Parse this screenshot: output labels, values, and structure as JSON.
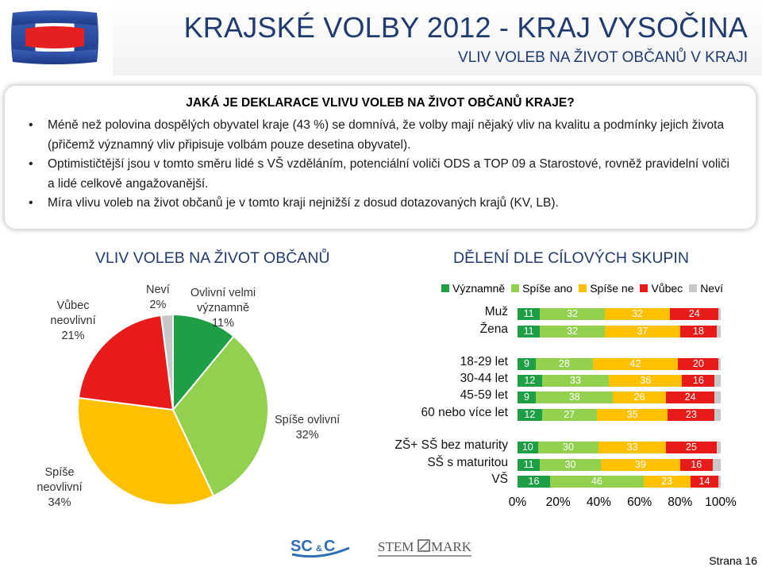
{
  "header": {
    "title": "KRAJSKÉ VOLBY 2012 - KRAJ VYSOČINA",
    "subtitle": "VLIV VOLEB NA ŽIVOT OBČANŮ V KRAJI",
    "logo_icon": "ct-logo-icon"
  },
  "info": {
    "heading": "JAKÁ JE DEKLARACE VLIVU VOLEB NA ŽIVOT OBČANŮ KRAJE?",
    "bullets": [
      "Méně než polovina dospělých obyvatel kraje (43 %) se domnívá, že volby mají nějaký vliv na kvalitu a podmínky jejich života (přičemž významný vliv připisuje volbám pouze desetina obyvatel).",
      "Optimističtější jsou v tomto směru lidé s VŠ vzděláním, potenciální voliči ODS a TOP 09 a Starostové, rovněž pravidelní voliči a lidé celkově angažovanější.",
      "Míra vlivu voleb na život občanů je v tomto kraji nejnižší z dosud dotazovaných krajů (KV, LB)."
    ]
  },
  "colors": {
    "vyznamne": "#1e9e45",
    "spise_ano": "#92d050",
    "spise_ne": "#ffc000",
    "vubec": "#e81b1b",
    "nevi": "#c8c8c8",
    "title_blue": "#1f3b6f"
  },
  "chart_data": [
    {
      "type": "pie",
      "title": "VLIV VOLEB NA ŽIVOT OBČANŮ",
      "slices": [
        {
          "name": "Ovlivní velmi významně",
          "value": 11,
          "label": "11%",
          "color": "#1e9e45"
        },
        {
          "name": "Spíše ovlivní",
          "value": 32,
          "label": "32%",
          "color": "#92d050"
        },
        {
          "name": "Spíše neovlivní",
          "value": 34,
          "label": "34%",
          "color": "#ffc000"
        },
        {
          "name": "Vůbec neovlivní",
          "value": 21,
          "label": "21%",
          "color": "#e81b1b"
        },
        {
          "name": "Neví",
          "value": 2,
          "label": "2%",
          "color": "#c8c8c8"
        }
      ]
    },
    {
      "type": "bar",
      "stacked": "100%",
      "orientation": "horizontal",
      "title": "DĚLENÍ DLE CÍLOVÝCH SKUPIN",
      "legend_position": "top",
      "series": [
        {
          "name": "Významně",
          "color": "#1e9e45"
        },
        {
          "name": "Spíše ano",
          "color": "#92d050"
        },
        {
          "name": "Spíše ne",
          "color": "#ffc000"
        },
        {
          "name": "Vůbec",
          "color": "#e81b1b"
        },
        {
          "name": "Neví",
          "color": "#c8c8c8"
        }
      ],
      "categories": [
        {
          "label": "Muž",
          "values": [
            11,
            32,
            32,
            24,
            1
          ]
        },
        {
          "label": "Žena",
          "values": [
            11,
            32,
            37,
            18,
            2
          ]
        },
        {
          "label": "18-29 let",
          "values": [
            9,
            28,
            42,
            20,
            1
          ]
        },
        {
          "label": "30-44 let",
          "values": [
            12,
            33,
            36,
            16,
            3
          ]
        },
        {
          "label": "45-59 let",
          "values": [
            9,
            38,
            26,
            24,
            3
          ]
        },
        {
          "label": "60 nebo více let",
          "values": [
            12,
            27,
            35,
            23,
            3
          ]
        },
        {
          "label": "ZŠ+ SŠ bez maturity",
          "values": [
            10,
            30,
            33,
            25,
            2
          ]
        },
        {
          "label": "SŠ s maturitou",
          "values": [
            11,
            30,
            39,
            16,
            4
          ]
        },
        {
          "label": "VŠ",
          "values": [
            16,
            46,
            23,
            14,
            1
          ]
        }
      ],
      "x_ticks": [
        "0%",
        "20%",
        "40%",
        "60%",
        "80%",
        "100%"
      ],
      "xlim": [
        0,
        100
      ],
      "grid": false
    }
  ],
  "footer": {
    "logos": [
      "scc-logo-icon",
      "stem-mark-logo-icon"
    ],
    "page": "Strana 16"
  }
}
